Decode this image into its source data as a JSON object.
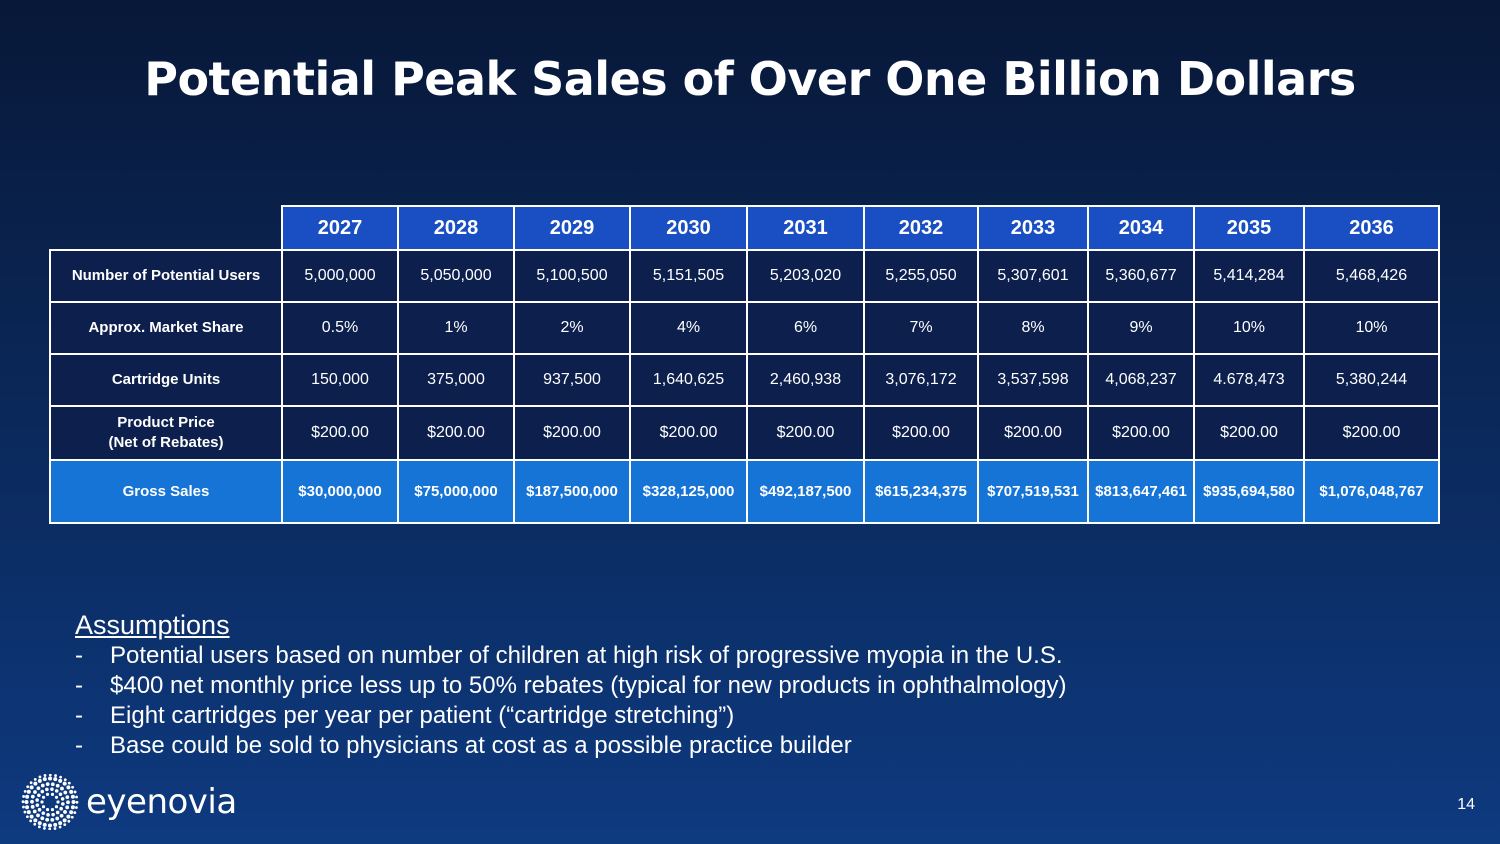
{
  "title": "Potential Peak Sales of Over One Billion Dollars",
  "table": {
    "years": [
      "2027",
      "2028",
      "2029",
      "2030",
      "2031",
      "2032",
      "2033",
      "2034",
      "2035",
      "2036"
    ],
    "rows": [
      {
        "label": "Number of Potential Users",
        "values": [
          "5,000,000",
          "5,050,000",
          "5,100,500",
          "5,151,505",
          "5,203,020",
          "5,255,050",
          "5,307,601",
          "5,360,677",
          "5,414,284",
          "5,468,426"
        ]
      },
      {
        "label": "Approx. Market Share",
        "values": [
          "0.5%",
          "1%",
          "2%",
          "4%",
          "6%",
          "7%",
          "8%",
          "9%",
          "10%",
          "10%"
        ]
      },
      {
        "label": "Cartridge Units",
        "values": [
          "150,000",
          "375,000",
          "937,500",
          "1,640,625",
          "2,460,938",
          "3,076,172",
          "3,537,598",
          "4,068,237",
          "4.678,473",
          "5,380,244"
        ]
      },
      {
        "label_line1": "Product Price",
        "label_line2": "(Net of Rebates)",
        "values": [
          "$200.00",
          "$200.00",
          "$200.00",
          "$200.00",
          "$200.00",
          "$200.00",
          "$200.00",
          "$200.00",
          "$200.00",
          "$200.00"
        ]
      },
      {
        "label": "Gross Sales",
        "values": [
          "$30,000,000",
          "$75,000,000",
          "$187,500,000",
          "$328,125,000",
          "$492,187,500",
          "$615,234,375",
          "$707,519,531",
          "$813,647,461",
          "$935,694,580",
          "$1,076,048,767"
        ]
      }
    ]
  },
  "assumptions": {
    "heading": "Assumptions",
    "bullet": "-",
    "items": [
      "Potential users based on number of children at high risk of progressive myopia in the U.S.",
      "$400 net monthly price less up to 50% rebates (typical for new products in ophthalmology)",
      "Eight cartridges per year per patient (“cartridge stretching”)",
      "Base could be sold to physicians at cost as a possible practice builder"
    ]
  },
  "logo": {
    "text": "eyenovia",
    "icon": "dotted-sunburst-icon"
  },
  "page_number": "14",
  "colors": {
    "background_top": "#081838",
    "background_bottom": "#0e3a80",
    "header_blue": "#1a4fc4",
    "gross_row_blue": "#1574d6",
    "cell_navy": "#0c1f4d"
  }
}
